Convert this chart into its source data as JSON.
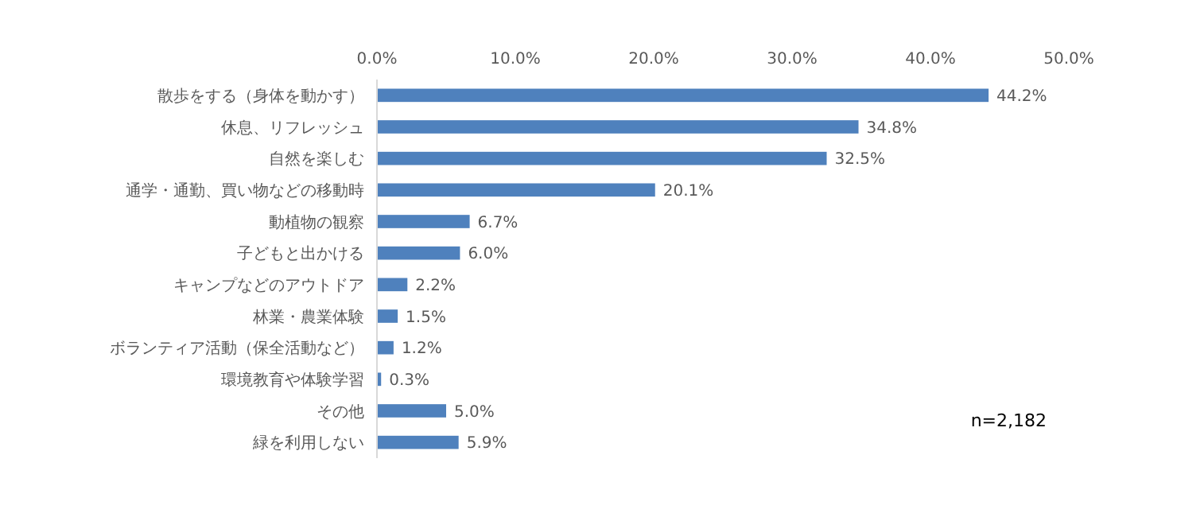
{
  "chart_data": {
    "type": "bar",
    "orientation": "horizontal",
    "categories": [
      "散歩をする（身体を動かす）",
      "休息、リフレッシュ",
      "自然を楽しむ",
      "通学・通勤、買い物などの移動時",
      "動植物の観察",
      "子どもと出かける",
      "キャンプなどのアウトドア",
      "林業・農業体験",
      "ボランティア活動（保全活動など）",
      "環境教育や体験学習",
      "その他",
      "緑を利用しない"
    ],
    "values": [
      44.2,
      34.8,
      32.5,
      20.1,
      6.7,
      6.0,
      2.2,
      1.5,
      1.2,
      0.3,
      5.0,
      5.9
    ],
    "value_labels": [
      "44.2%",
      "34.8%",
      "32.5%",
      "20.1%",
      "6.7%",
      "6.0%",
      "2.2%",
      "1.5%",
      "1.2%",
      "0.3%",
      "5.0%",
      "5.9%"
    ],
    "color": "#4f81bd",
    "xlim": [
      0,
      50
    ],
    "xticks": [
      {
        "value": 0,
        "label": "0.0%"
      },
      {
        "value": 10,
        "label": "10.0%"
      },
      {
        "value": 20,
        "label": "20.0%"
      },
      {
        "value": 30,
        "label": "30.0%"
      },
      {
        "value": 40,
        "label": "40.0%"
      },
      {
        "value": 50,
        "label": "50.0%"
      }
    ],
    "annotations": [
      "n=2,182"
    ]
  }
}
